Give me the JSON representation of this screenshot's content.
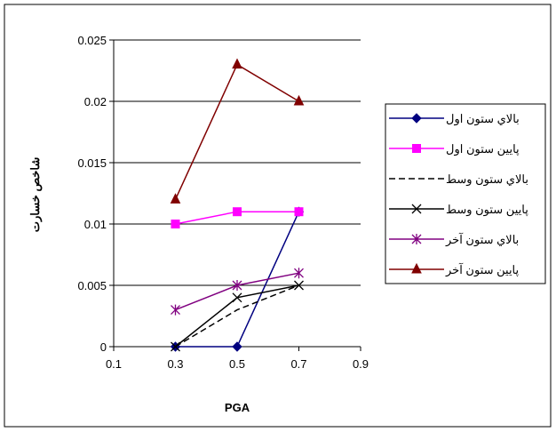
{
  "chart_data": {
    "type": "line",
    "xlabel": "PGA",
    "ylabel": "شاخص خسارت",
    "xlim": [
      0.1,
      0.9
    ],
    "ylim": [
      0,
      0.025
    ],
    "xticks": [
      "0.1",
      "0.3",
      "0.5",
      "0.7",
      "0.9"
    ],
    "yticks": [
      "0",
      "0.005",
      "0.01",
      "0.015",
      "0.02",
      "0.025"
    ],
    "grid": "horizontal",
    "legend_position": "right",
    "series": [
      {
        "name": "بالاي ستون اول",
        "color": "#000080",
        "marker": "diamond",
        "dash": "solid",
        "x": [
          0.3,
          0.5,
          0.7
        ],
        "y": [
          0,
          0,
          0.011
        ]
      },
      {
        "name": "پايين ستون اول",
        "color": "#FF00FF",
        "marker": "square",
        "dash": "solid",
        "x": [
          0.3,
          0.5,
          0.7
        ],
        "y": [
          0.01,
          0.011,
          0.011
        ]
      },
      {
        "name": "بالاي ستون وسط",
        "color": "#000000",
        "marker": "none",
        "dash": "dashed",
        "x": [
          0.3,
          0.5,
          0.7
        ],
        "y": [
          0,
          0.003,
          0.005
        ]
      },
      {
        "name": "پايين ستون وسط",
        "color": "#000000",
        "marker": "x",
        "dash": "solid",
        "x": [
          0.3,
          0.5,
          0.7
        ],
        "y": [
          0,
          0.004,
          0.005
        ]
      },
      {
        "name": "بالاي ستون آخر",
        "color": "#800080",
        "marker": "star",
        "dash": "solid",
        "x": [
          0.3,
          0.5,
          0.7
        ],
        "y": [
          0.003,
          0.005,
          0.006
        ]
      },
      {
        "name": "پايين ستون آخر",
        "color": "#800000",
        "marker": "triangle",
        "dash": "solid",
        "x": [
          0.3,
          0.5,
          0.7
        ],
        "y": [
          0.012,
          0.023,
          0.02
        ]
      }
    ]
  }
}
